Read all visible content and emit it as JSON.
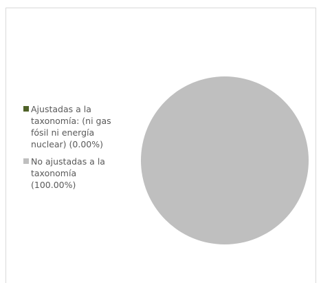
{
  "chart_data": {
    "type": "pie",
    "categories": [
      "Ajustadas a la taxonomía: (ni gas fósil ni energía nuclear) (0.00%)",
      "No ajustadas a la taxonomía (100.00%)"
    ],
    "values": [
      0,
      100
    ],
    "colors": [
      "#4f6228",
      "#bfbfbf"
    ],
    "legend": "left"
  }
}
